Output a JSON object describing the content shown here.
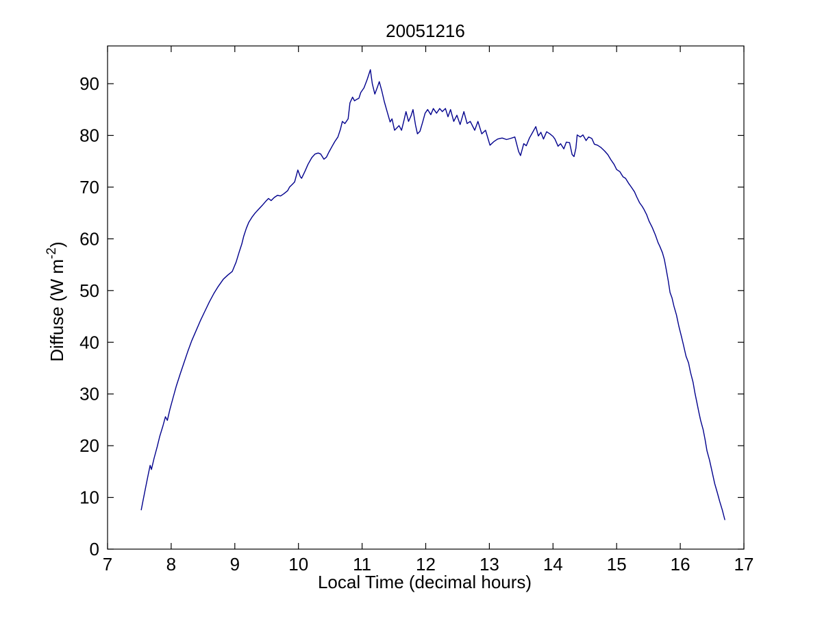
{
  "figure": {
    "background": "#ffffff",
    "frame_color": "#000000"
  },
  "chart_data": {
    "type": "line",
    "title": "20051216",
    "xlabel": "Local Time (decimal hours)",
    "ylabel": "Diffuse (W m⁻²)",
    "ylabel_parts": {
      "main": "Diffuse (W m",
      "sup": "-2",
      "close": ")"
    },
    "xlim": [
      7,
      17
    ],
    "ylim": [
      0,
      97.3
    ],
    "xticks": [
      7,
      8,
      9,
      10,
      11,
      12,
      13,
      14,
      15,
      16,
      17
    ],
    "yticks": [
      0,
      10,
      20,
      30,
      40,
      50,
      60,
      70,
      80,
      90
    ],
    "grid": false,
    "legend": null,
    "line_color": "#00008c",
    "series": [
      {
        "name": "diffuse",
        "x": [
          7.53,
          7.56,
          7.6,
          7.64,
          7.67,
          7.69,
          7.73,
          7.78,
          7.82,
          7.87,
          7.91,
          7.94,
          7.98,
          8.03,
          8.08,
          8.14,
          8.2,
          8.26,
          8.32,
          8.39,
          8.46,
          8.53,
          8.6,
          8.67,
          8.74,
          8.82,
          8.89,
          8.96,
          9.02,
          9.07,
          9.11,
          9.14,
          9.18,
          9.22,
          9.27,
          9.32,
          9.38,
          9.44,
          9.49,
          9.53,
          9.57,
          9.62,
          9.67,
          9.72,
          9.77,
          9.83,
          9.86,
          9.91,
          9.94,
          9.99,
          10.03,
          10.05,
          10.1,
          10.15,
          10.21,
          10.26,
          10.31,
          10.35,
          10.4,
          10.44,
          10.48,
          10.53,
          10.57,
          10.62,
          10.66,
          10.69,
          10.73,
          10.78,
          10.81,
          10.85,
          10.88,
          10.92,
          10.95,
          10.98,
          11.03,
          11.08,
          11.13,
          11.16,
          11.2,
          11.24,
          11.27,
          11.31,
          11.35,
          11.4,
          11.44,
          11.47,
          11.51,
          11.55,
          11.58,
          11.62,
          11.66,
          11.69,
          11.73,
          11.77,
          11.8,
          11.84,
          11.87,
          11.91,
          11.95,
          11.99,
          12.03,
          12.08,
          12.12,
          12.17,
          12.22,
          12.26,
          12.31,
          12.35,
          12.39,
          12.44,
          12.49,
          12.54,
          12.6,
          12.65,
          12.7,
          12.77,
          12.82,
          12.88,
          12.94,
          13.01,
          13.07,
          13.13,
          13.2,
          13.27,
          13.33,
          13.4,
          13.46,
          13.49,
          13.54,
          13.58,
          13.63,
          13.68,
          13.73,
          13.77,
          13.81,
          13.85,
          13.9,
          13.95,
          14.0,
          14.03,
          14.08,
          14.12,
          14.17,
          14.21,
          14.26,
          14.3,
          14.33,
          14.36,
          14.38,
          14.43,
          14.47,
          14.52,
          14.56,
          14.61,
          14.65,
          14.7,
          14.75,
          14.81,
          14.86,
          14.91,
          14.96,
          15.0,
          15.05,
          15.1,
          15.14,
          15.19,
          15.23,
          15.28,
          15.32,
          15.36,
          15.4,
          15.43,
          15.47,
          15.51,
          15.56,
          15.61,
          15.65,
          15.68,
          15.72,
          15.75,
          15.78,
          15.81,
          15.84,
          15.87,
          15.9,
          15.94,
          15.98,
          16.02,
          16.05,
          16.09,
          16.13,
          16.16,
          16.2,
          16.23,
          16.26,
          16.29,
          16.32,
          16.36,
          16.39,
          16.42,
          16.46,
          16.5,
          16.54,
          16.58,
          16.62,
          16.66,
          16.7
        ],
        "y": [
          7.6,
          9.5,
          12.0,
          14.5,
          16.2,
          15.4,
          17.5,
          19.8,
          21.8,
          23.8,
          25.6,
          24.9,
          27.0,
          29.3,
          31.5,
          33.8,
          36.0,
          38.2,
          40.2,
          42.2,
          44.2,
          46.0,
          47.8,
          49.4,
          50.8,
          52.2,
          53.0,
          53.7,
          55.5,
          57.5,
          59.0,
          60.5,
          62.0,
          63.2,
          64.2,
          65.0,
          65.8,
          66.6,
          67.3,
          67.8,
          67.4,
          68.0,
          68.4,
          68.3,
          68.7,
          69.3,
          70.0,
          70.6,
          71.0,
          73.3,
          72.0,
          71.7,
          73.0,
          74.4,
          75.7,
          76.4,
          76.6,
          76.4,
          75.4,
          75.8,
          76.8,
          77.9,
          78.8,
          79.7,
          81.2,
          82.7,
          82.3,
          83.2,
          86.3,
          87.4,
          86.7,
          87.0,
          87.2,
          88.3,
          89.2,
          90.8,
          92.7,
          90.0,
          88.0,
          89.3,
          90.4,
          88.6,
          86.5,
          84.3,
          82.6,
          83.2,
          81.0,
          81.5,
          81.9,
          81.0,
          83.0,
          84.6,
          82.7,
          83.8,
          85.0,
          82.0,
          80.3,
          80.8,
          82.5,
          84.3,
          85.0,
          84.0,
          85.2,
          84.3,
          85.2,
          84.6,
          85.2,
          83.6,
          85.0,
          82.7,
          83.9,
          82.1,
          84.6,
          82.3,
          82.7,
          81.0,
          82.7,
          80.3,
          81.0,
          78.1,
          78.8,
          79.3,
          79.5,
          79.2,
          79.4,
          79.7,
          76.9,
          76.1,
          78.4,
          78.0,
          79.5,
          80.6,
          81.7,
          79.9,
          80.6,
          79.3,
          80.7,
          80.3,
          79.8,
          79.3,
          77.9,
          78.4,
          77.4,
          78.7,
          78.6,
          76.3,
          75.9,
          77.5,
          80.1,
          79.7,
          80.1,
          79.0,
          79.7,
          79.4,
          78.3,
          78.1,
          77.7,
          77.0,
          76.3,
          75.3,
          74.4,
          73.4,
          73.0,
          72.0,
          71.7,
          70.7,
          70.0,
          69.1,
          68.0,
          67.0,
          66.3,
          65.7,
          64.7,
          63.4,
          62.2,
          60.7,
          59.3,
          58.5,
          57.3,
          56.0,
          54.0,
          52.0,
          49.6,
          48.6,
          47.0,
          45.3,
          43.0,
          41.0,
          39.5,
          37.3,
          36.0,
          34.2,
          32.3,
          30.2,
          28.4,
          26.6,
          24.9,
          23.1,
          21.2,
          19.0,
          17.2,
          15.0,
          12.7,
          11.0,
          9.2,
          7.6,
          5.7
        ]
      }
    ]
  }
}
